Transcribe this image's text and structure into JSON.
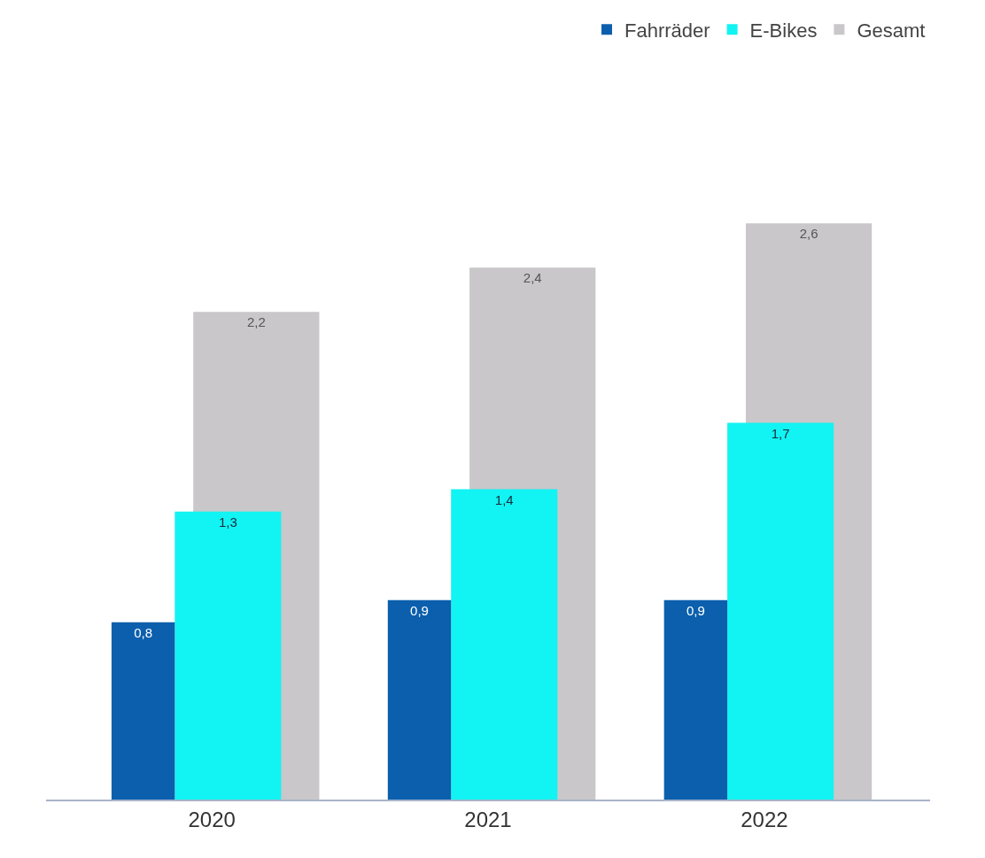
{
  "chart_data": {
    "type": "bar",
    "categories": [
      "2020",
      "2021",
      "2022"
    ],
    "series": [
      {
        "name": "Fahrräder",
        "color": "#0b5fad",
        "values": [
          0.8,
          0.9,
          0.9
        ],
        "value_labels": [
          "0,8",
          "0,9",
          "0,9"
        ]
      },
      {
        "name": "E-Bikes",
        "color": "#12f3f3",
        "values": [
          1.3,
          1.4,
          1.7
        ],
        "value_labels": [
          "1,3",
          "1,4",
          "1,7"
        ]
      },
      {
        "name": "Gesamt",
        "color": "#c9c7c9",
        "values": [
          2.2,
          2.4,
          2.6
        ],
        "value_labels": [
          "2,2",
          "2,4",
          "2,6"
        ]
      }
    ],
    "legend": "top right",
    "grid": false
  }
}
